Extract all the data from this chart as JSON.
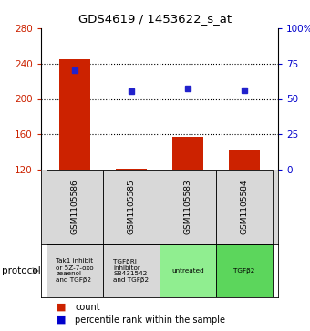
{
  "title": "GDS4619 / 1453622_s_at",
  "samples": [
    "GSM1105586",
    "GSM1105585",
    "GSM1105583",
    "GSM1105584"
  ],
  "bar_values": [
    245,
    121,
    157,
    143
  ],
  "bar_base": 120,
  "percentile_values": [
    233,
    209,
    212,
    210
  ],
  "ylim_left": [
    120,
    280
  ],
  "yticks_left": [
    120,
    160,
    200,
    240,
    280
  ],
  "ylim_right": [
    0,
    100
  ],
  "yticks_right": [
    0,
    25,
    50,
    75,
    100
  ],
  "ytick_right_labels": [
    "0",
    "25",
    "50",
    "75",
    "100%"
  ],
  "bar_color": "#cc2200",
  "percentile_color": "#2222cc",
  "protocol_labels": [
    "Tak1 inhibit\nor 5Z-7-oxo\nzeaenol\nand TGFβ2",
    "TGFβRI\ninhibitor\nSB431542\nand TGFβ2",
    "untreated",
    "TGFβ2"
  ],
  "protocol_colors": [
    "#d8d8d8",
    "#d8d8d8",
    "#90ee90",
    "#5cd65c"
  ],
  "left_tick_color": "#cc2200",
  "right_tick_color": "#0000cc",
  "legend_count_color": "#cc2200",
  "legend_pct_color": "#0000cc",
  "dotted_lines": [
    160,
    200,
    240
  ]
}
